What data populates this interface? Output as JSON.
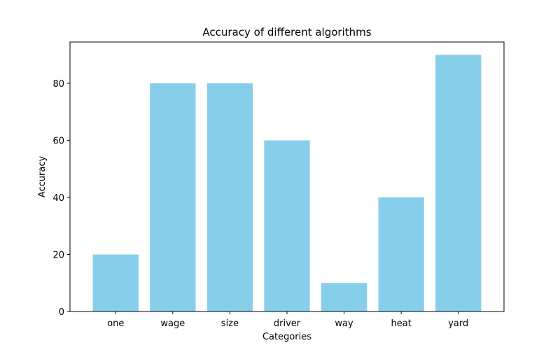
{
  "chart_data": {
    "type": "bar",
    "title": "Accuracy of different algorithms",
    "xlabel": "Categories",
    "ylabel": "Accuracy",
    "categories": [
      "one",
      "wage",
      "size",
      "driver",
      "way",
      "heat",
      "yard"
    ],
    "values": [
      20,
      80,
      80,
      60,
      10,
      40,
      90
    ],
    "ylim": [
      0,
      94.5
    ],
    "yticks": [
      0,
      20,
      40,
      60,
      80
    ],
    "bar_color": "#87CEEB",
    "grid": false,
    "legend": "none"
  }
}
